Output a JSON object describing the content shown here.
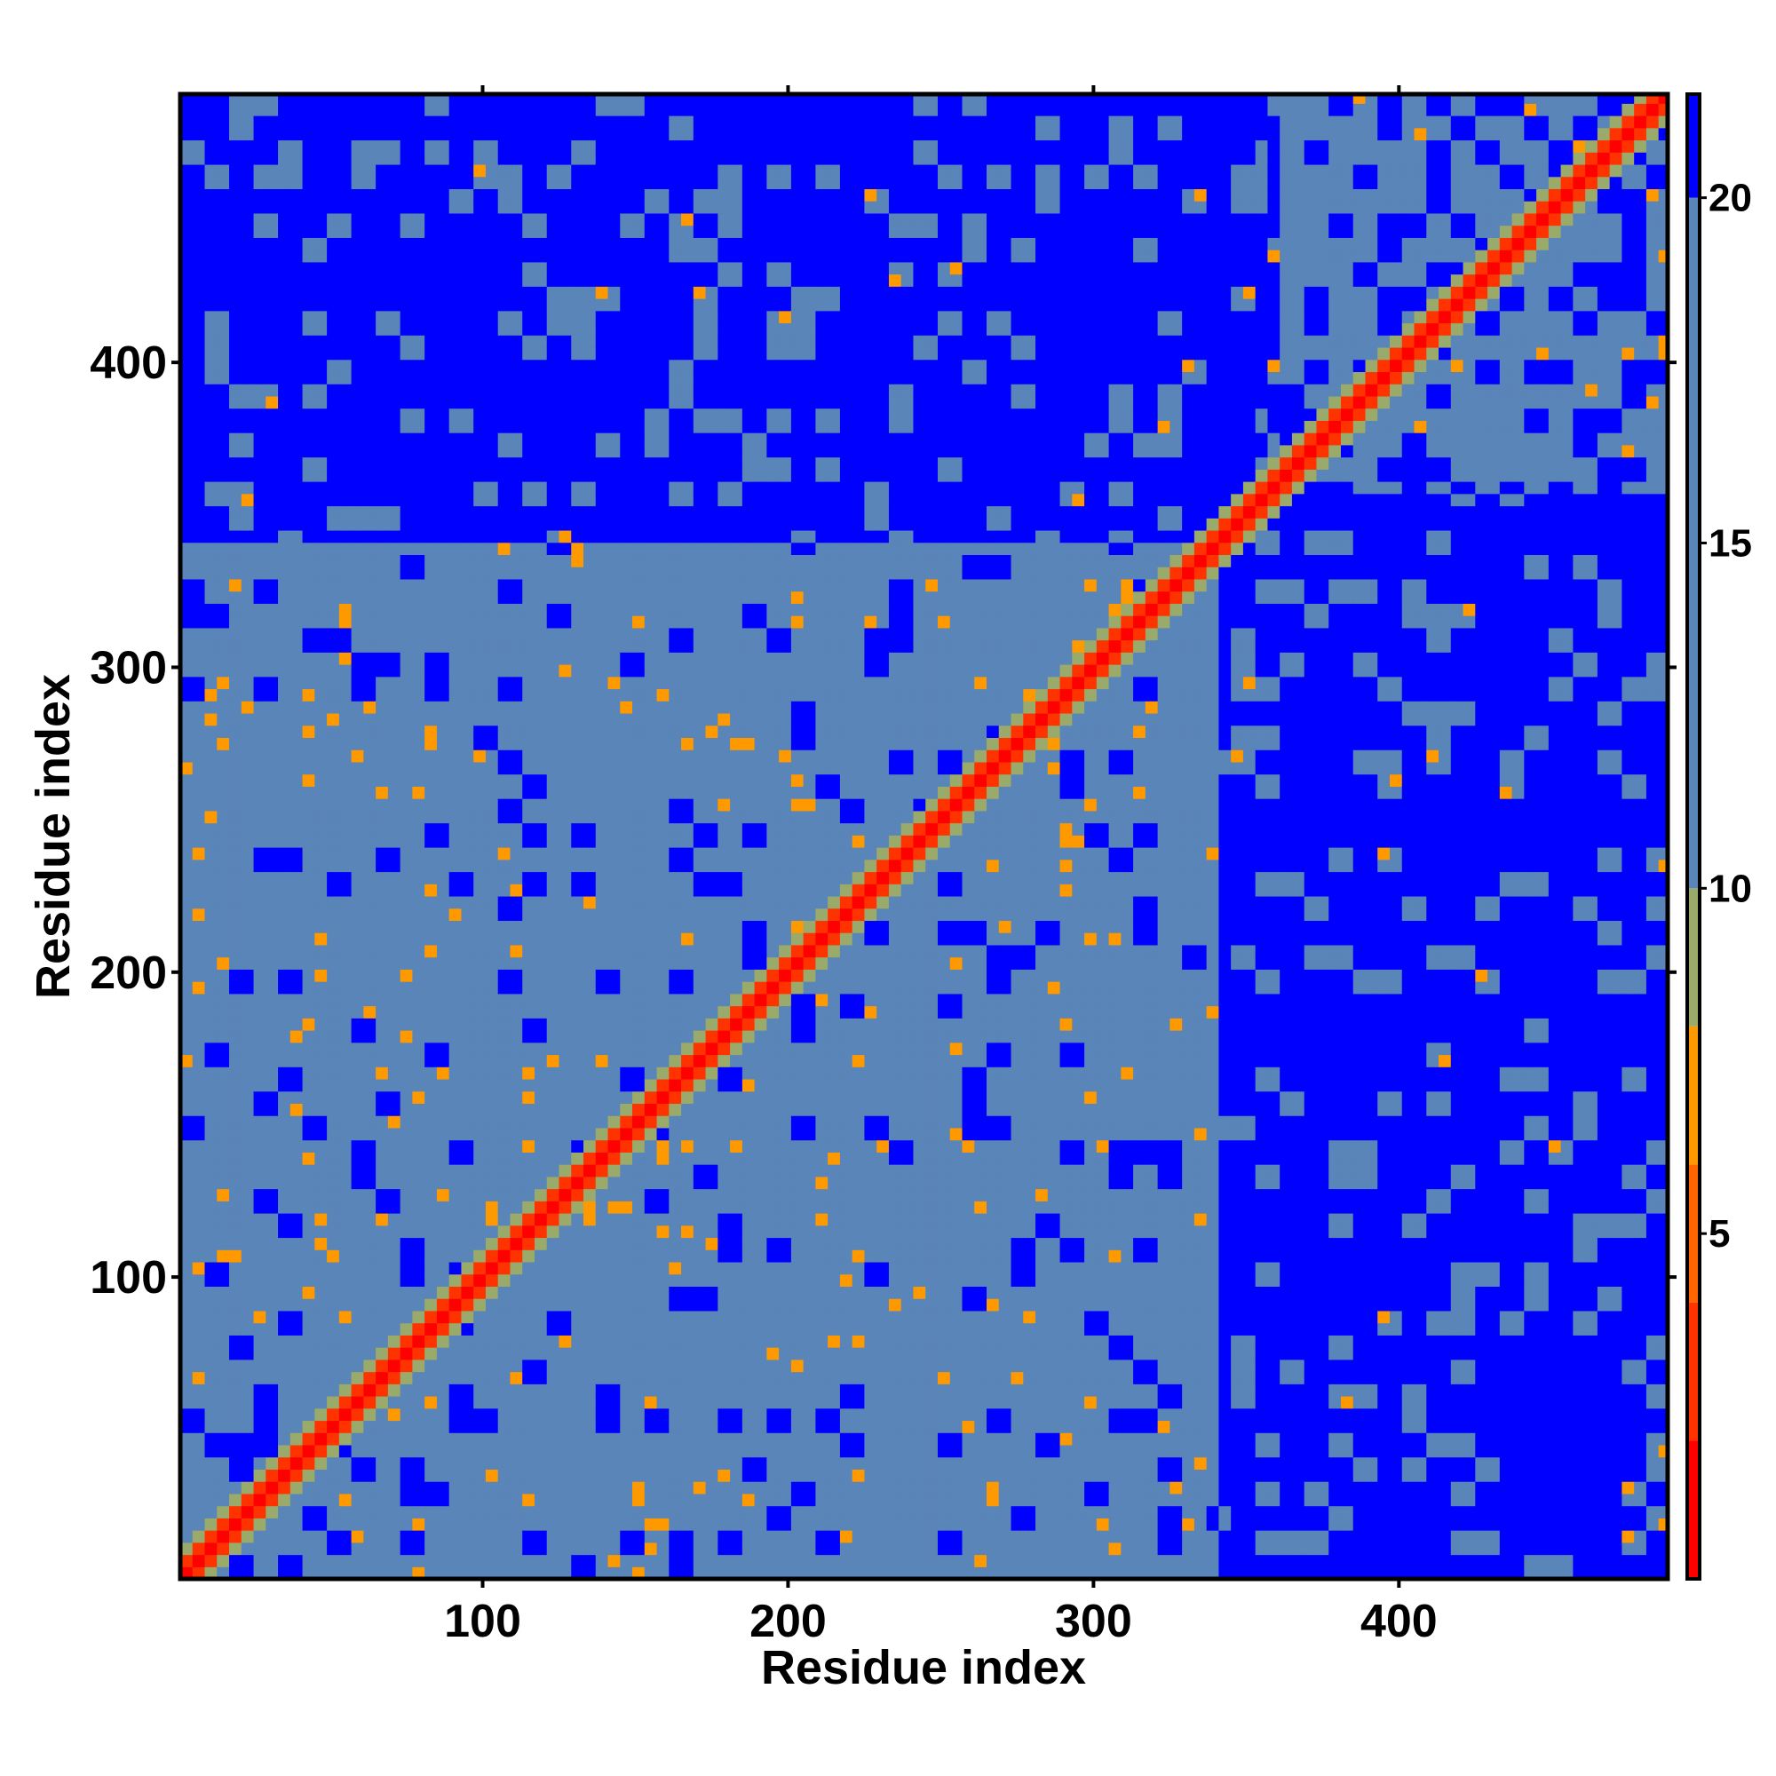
{
  "chart_data": {
    "type": "heatmap",
    "title": "",
    "xlabel": "Residue index",
    "ylabel": "Residue index",
    "xlim": [
      1,
      488
    ],
    "ylim": [
      1,
      488
    ],
    "x_ticks": [
      100,
      200,
      300,
      400
    ],
    "x_tick_labels": [
      "100",
      "200",
      "300",
      "400"
    ],
    "y_ticks": [
      100,
      200,
      300,
      400
    ],
    "y_tick_labels": [
      "100",
      "200",
      "300",
      "400"
    ],
    "colorbar": {
      "range": [
        0,
        21.5
      ],
      "ticks": [
        5,
        10,
        15,
        20
      ],
      "tick_labels": [
        "5",
        "10",
        "15",
        "20"
      ],
      "colors": [
        {
          "from": 0,
          "to": 2,
          "color": "#ff0000"
        },
        {
          "from": 2,
          "to": 4,
          "color": "#ff3300"
        },
        {
          "from": 4,
          "to": 6,
          "color": "#ff6600"
        },
        {
          "from": 6,
          "to": 8,
          "color": "#ff9900"
        },
        {
          "from": 8,
          "to": 10,
          "color": "#9aaa6a"
        },
        {
          "from": 10,
          "to": 20,
          "color": "#5a85b8"
        },
        {
          "from": 20,
          "to": 21.5,
          "color": "#0000ff"
        }
      ]
    },
    "grid": false,
    "legend": "right",
    "colors": {
      "near_contact": "#ff0000",
      "contact": "#ff9900",
      "mid": "#5a85b8",
      "far": "#0000ff"
    },
    "features": {
      "diagonal": "red contact band along y = x (distance near 0)",
      "compact_domain": [
        1,
        340
      ],
      "compact_domain_value": 15,
      "distant_value": 21,
      "c_terminal_domain": [
        355,
        488
      ]
    }
  }
}
